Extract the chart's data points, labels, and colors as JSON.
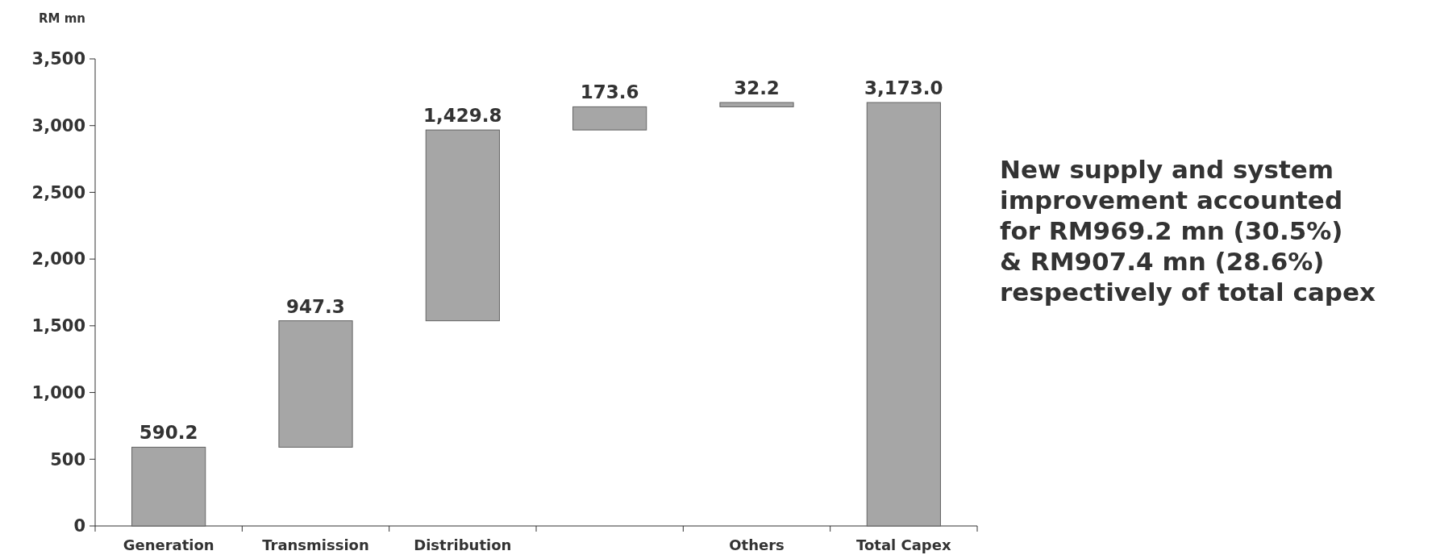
{
  "chart_data": {
    "type": "bar",
    "ylabel": "RM mn",
    "categories": [
      "Generation",
      "Transmission",
      "Distribution",
      null,
      "Others",
      "Total Capex"
    ],
    "values": [
      590.2,
      947.3,
      1429.8,
      173.6,
      32.2,
      3173.0
    ],
    "base": [
      0,
      590.2,
      1537.5,
      2967.3,
      3140.9,
      0
    ],
    "value_labels": [
      "590.2",
      "947.3",
      "1,429.8",
      "173.6",
      "32.2",
      "3,173.0"
    ],
    "color": "#a6a6a6",
    "ylim": [
      0,
      3500
    ],
    "yticks": [
      0,
      500,
      {
        "value": 1000,
        "label": "1,000"
      },
      {
        "value": 1500,
        "label": "1,500"
      },
      {
        "value": 2000,
        "label": "2,000"
      },
      {
        "value": 2500,
        "label": "2,500"
      },
      {
        "value": 3000,
        "label": "3,000"
      },
      {
        "value": 3500,
        "label": "3,500"
      }
    ],
    "annotations": [
      "New supply and system\nimprovement accounted\nfor RM969.2 mn (30.5%)\n& RM907.4 mn (28.6%)\nrespectively of total capex"
    ]
  }
}
